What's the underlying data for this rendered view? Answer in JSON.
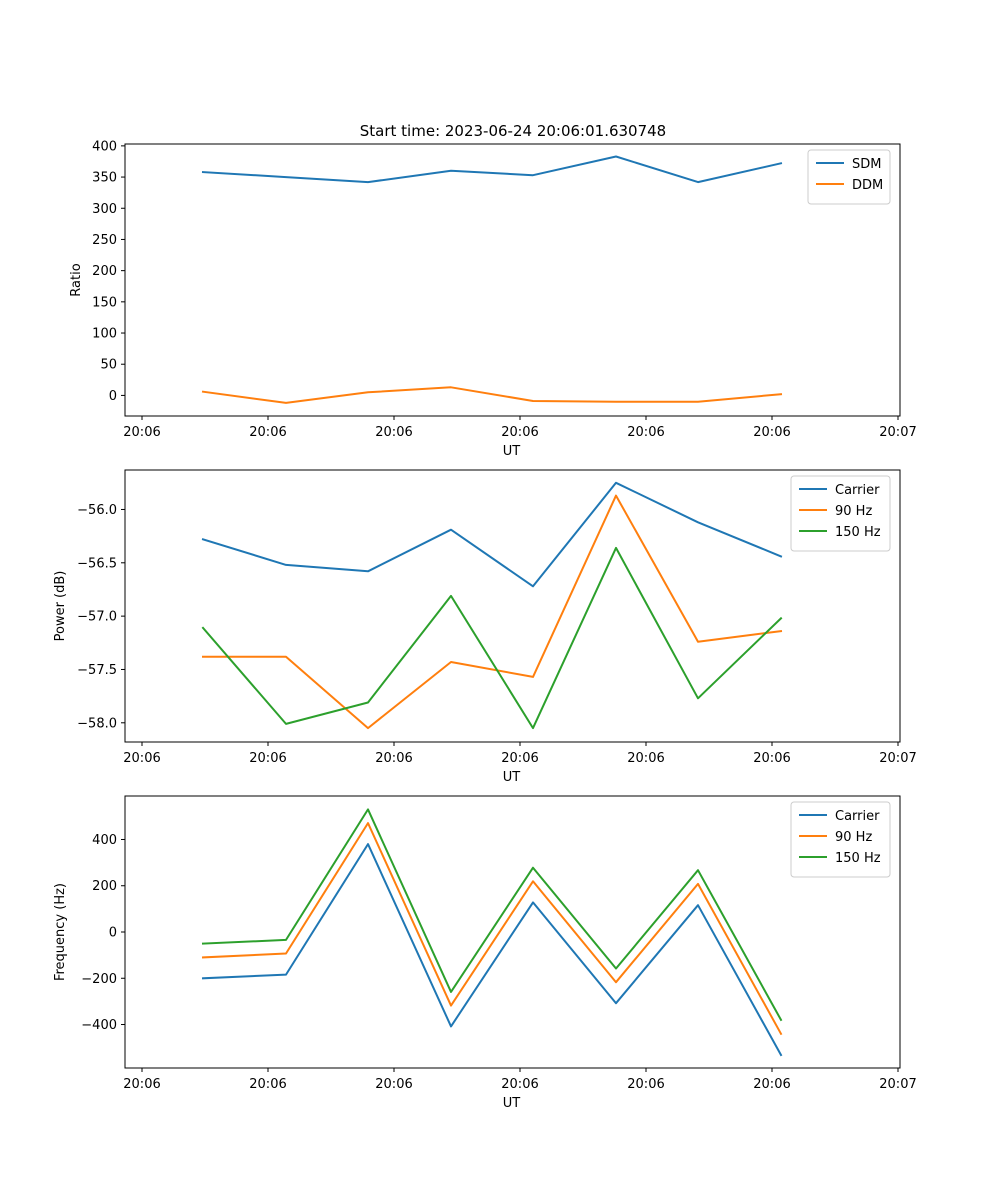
{
  "figure": {
    "title": "Start time: 2023-06-24 20:06:01.630748"
  },
  "chart_data": [
    {
      "type": "line",
      "title": "Start time: 2023-06-24 20:06:01.630748",
      "xlabel": "UT",
      "ylabel": "Ratio",
      "x_tick_labels": [
        "20:06",
        "20:06",
        "20:06",
        "20:06",
        "20:06",
        "20:06",
        "20:07"
      ],
      "y_ticks": [
        0,
        50,
        100,
        150,
        200,
        250,
        300,
        350,
        400
      ],
      "ylim": [
        -33,
        403
      ],
      "grid": false,
      "legend_position": "top-right",
      "series": [
        {
          "name": "SDM",
          "color": "#1f77b4",
          "values": [
            358,
            350,
            342,
            360,
            353,
            383,
            342,
            372
          ]
        },
        {
          "name": "DDM",
          "color": "#ff7f0e",
          "values": [
            6,
            -12,
            5,
            13,
            -9,
            -10,
            -10,
            2
          ]
        }
      ]
    },
    {
      "type": "line",
      "title": "",
      "xlabel": "UT",
      "ylabel": "Power (dB)",
      "x_tick_labels": [
        "20:06",
        "20:06",
        "20:06",
        "20:06",
        "20:06",
        "20:06",
        "20:07"
      ],
      "y_ticks": [
        -58.0,
        -57.5,
        -57.0,
        -56.5,
        -56.0
      ],
      "y_tick_labels": [
        "−58.0",
        "−57.5",
        "−57.0",
        "−56.5",
        "−56.0"
      ],
      "ylim": [
        -58.18,
        -55.63
      ],
      "grid": false,
      "legend_position": "top-right",
      "series": [
        {
          "name": "Carrier",
          "color": "#1f77b4",
          "values": [
            -56.28,
            -56.52,
            -56.58,
            -56.19,
            -56.72,
            -55.75,
            -56.12,
            -56.44
          ]
        },
        {
          "name": "90 Hz",
          "color": "#ff7f0e",
          "values": [
            -57.38,
            -57.38,
            -58.05,
            -57.43,
            -57.57,
            -55.87,
            -57.24,
            -57.14
          ]
        },
        {
          "name": "150 Hz",
          "color": "#2ca02c",
          "values": [
            -57.11,
            -58.01,
            -57.81,
            -56.81,
            -58.05,
            -56.36,
            -57.77,
            -57.02
          ]
        }
      ]
    },
    {
      "type": "line",
      "title": "",
      "xlabel": "UT",
      "ylabel": "Frequency (Hz)",
      "x_tick_labels": [
        "20:06",
        "20:06",
        "20:06",
        "20:06",
        "20:06",
        "20:06",
        "20:07"
      ],
      "y_ticks": [
        -400,
        -200,
        0,
        200,
        400
      ],
      "y_tick_labels": [
        "−400",
        "−200",
        "0",
        "200",
        "400"
      ],
      "ylim": [
        -588,
        588
      ],
      "grid": false,
      "legend_position": "top-right",
      "series": [
        {
          "name": "Carrier",
          "color": "#1f77b4",
          "values": [
            -200,
            -184,
            380,
            -408,
            128,
            -308,
            116,
            -532
          ]
        },
        {
          "name": "90 Hz",
          "color": "#ff7f0e",
          "values": [
            -110,
            -93,
            471,
            -318,
            219,
            -217,
            208,
            -440
          ]
        },
        {
          "name": "150 Hz",
          "color": "#2ca02c",
          "values": [
            -50,
            -34,
            530,
            -259,
            278,
            -158,
            267,
            -380
          ]
        }
      ]
    }
  ]
}
